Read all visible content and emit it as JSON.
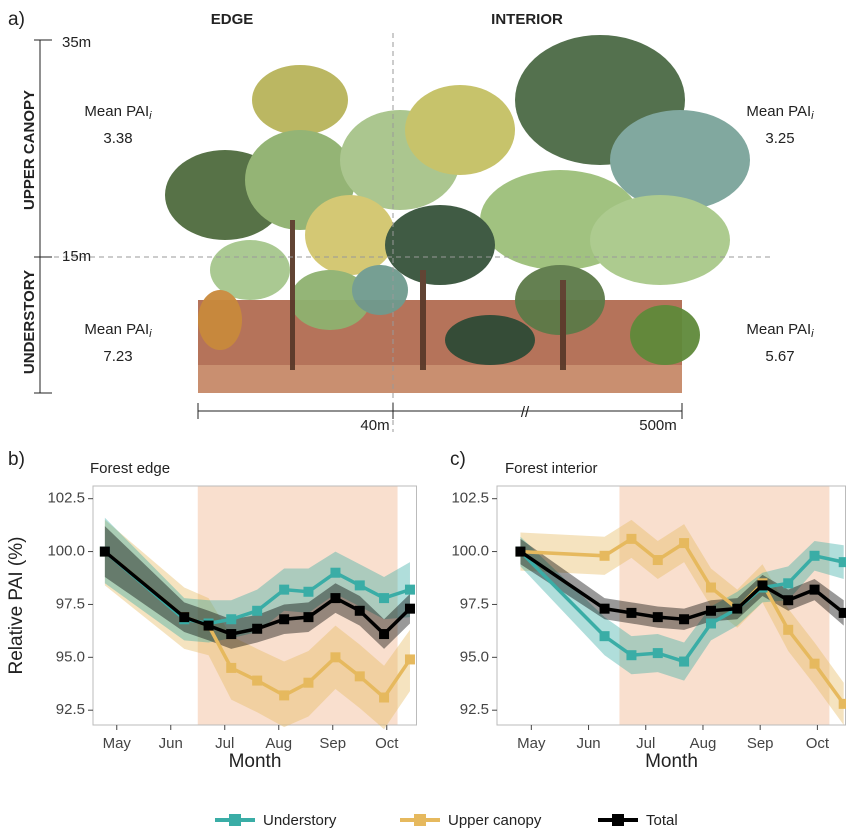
{
  "illustration": {
    "panel_label": "a)",
    "edge": "EDGE",
    "interior": "INTERIOR",
    "height_top": "35m",
    "height_mid": "15m",
    "upper_canopy": "UPPER CANOPY",
    "understory": "UNDERSTORY",
    "distance_edge": "40m",
    "distance_break": "//",
    "distance_interior": "500m",
    "annotations": [
      {
        "label": "Mean PAI",
        "sub": "i",
        "value": "3.38"
      },
      {
        "label": "Mean PAI",
        "sub": "i",
        "value": "7.23"
      },
      {
        "label": "Mean PAI",
        "sub": "i",
        "value": "3.25"
      },
      {
        "label": "Mean PAI",
        "sub": "i",
        "value": "5.67"
      }
    ]
  },
  "chart_data": [
    {
      "type": "line",
      "panel_label": "b)",
      "title": "Forest edge",
      "x_label": "Month",
      "y_label": "Relative PAI (%)",
      "x": [
        4.78,
        6.25,
        6.7,
        7.12,
        7.6,
        8.1,
        8.55,
        9.05,
        9.5,
        9.95,
        10.43
      ],
      "xlim": [
        4.56,
        10.56
      ],
      "ylim": [
        91.8,
        103.1
      ],
      "xticks": [
        {
          "value": 5,
          "label": "May"
        },
        {
          "value": 6,
          "label": "Jun"
        },
        {
          "value": 7,
          "label": "Jul"
        },
        {
          "value": 8,
          "label": "Aug"
        },
        {
          "value": 9,
          "label": "Sep"
        },
        {
          "value": 10,
          "label": "Oct"
        }
      ],
      "yticks": [
        92.5,
        {
          "value": 95,
          "label": "95.0"
        },
        97.5,
        {
          "value": 100,
          "label": "100.0"
        },
        102.5
      ],
      "highlight": [
        6.5,
        10.2
      ],
      "highlight_color": "#f8d9c6",
      "series": [
        {
          "name": "Understory",
          "color": "#3aada6",
          "values": [
            100.0,
            96.8,
            96.6,
            96.8,
            97.2,
            98.2,
            98.1,
            99.0,
            98.4,
            97.8,
            98.2
          ],
          "upper": [
            101.6,
            97.8,
            97.7,
            97.7,
            98.2,
            99.2,
            99.2,
            100.0,
            99.4,
            98.8,
            99.5
          ],
          "lower": [
            98.5,
            95.8,
            95.7,
            95.9,
            96.2,
            97.2,
            97.1,
            98.0,
            97.4,
            96.8,
            96.9
          ]
        },
        {
          "name": "Upper canopy",
          "color": "#e6b95e",
          "values": [
            100.0,
            96.9,
            96.5,
            94.5,
            93.9,
            93.2,
            93.8,
            95.0,
            94.1,
            93.1,
            94.9
          ],
          "upper": [
            101.5,
            98.3,
            97.8,
            96.0,
            95.4,
            94.8,
            95.3,
            96.5,
            95.6,
            94.6,
            96.3
          ],
          "lower": [
            98.4,
            95.4,
            95.1,
            93.0,
            92.4,
            91.7,
            92.2,
            93.5,
            92.6,
            91.6,
            93.4
          ]
        },
        {
          "name": "Total",
          "color": "#000000",
          "values": [
            100.0,
            96.9,
            96.5,
            96.1,
            96.35,
            96.8,
            96.9,
            97.8,
            97.2,
            96.1,
            97.3
          ],
          "upper": [
            101.2,
            97.6,
            97.2,
            96.8,
            97.0,
            97.5,
            97.6,
            98.5,
            97.9,
            96.8,
            98.0
          ],
          "lower": [
            98.8,
            96.2,
            95.8,
            95.4,
            95.7,
            96.1,
            96.2,
            97.1,
            96.5,
            95.4,
            96.6
          ]
        }
      ]
    },
    {
      "type": "line",
      "panel_label": "c)",
      "title": "Forest interior",
      "x_label": "Month",
      "x": [
        4.81,
        6.28,
        6.75,
        7.21,
        7.67,
        8.14,
        8.6,
        9.04,
        9.49,
        9.95,
        10.46
      ],
      "xlim": [
        4.4,
        10.5
      ],
      "ylim": [
        91.8,
        103.1
      ],
      "xticks": [
        {
          "value": 5,
          "label": "May"
        },
        {
          "value": 6,
          "label": "Jun"
        },
        {
          "value": 7,
          "label": "Jul"
        },
        {
          "value": 8,
          "label": "Aug"
        },
        {
          "value": 9,
          "label": "Sep"
        },
        {
          "value": 10,
          "label": "Oct"
        }
      ],
      "yticks": [
        92.5,
        {
          "value": 95,
          "label": "95.0"
        },
        97.5,
        {
          "value": 100,
          "label": "100.0"
        },
        102.5
      ],
      "highlight": [
        6.54,
        10.21
      ],
      "highlight_color": "#f8d9c6",
      "series": [
        {
          "color": "#3aada6",
          "values": [
            100.0,
            96.0,
            95.1,
            95.2,
            94.8,
            96.6,
            97.3,
            98.3,
            98.5,
            99.8,
            99.5
          ],
          "upper": [
            100.7,
            96.9,
            96.0,
            96.1,
            95.7,
            97.4,
            98.1,
            99.0,
            99.3,
            100.5,
            100.3
          ],
          "lower": [
            99.3,
            95.1,
            94.2,
            94.3,
            93.9,
            95.8,
            96.5,
            97.6,
            97.7,
            99.1,
            98.7
          ]
        },
        {
          "color": "#e6b95e",
          "values": [
            100.0,
            99.8,
            100.6,
            99.6,
            100.4,
            98.3,
            97.3,
            98.5,
            96.3,
            94.7,
            92.8
          ],
          "upper": [
            100.9,
            100.7,
            101.5,
            100.5,
            101.3,
            99.2,
            98.2,
            99.4,
            97.3,
            95.7,
            93.8
          ],
          "lower": [
            99.1,
            98.9,
            99.7,
            98.7,
            99.5,
            97.4,
            96.4,
            97.6,
            95.3,
            93.7,
            91.8
          ]
        },
        {
          "color": "#000000",
          "values": [
            100.0,
            97.3,
            97.1,
            96.9,
            96.8,
            97.2,
            97.3,
            98.4,
            97.7,
            98.2,
            97.1
          ],
          "upper": [
            100.6,
            97.8,
            97.6,
            97.4,
            97.3,
            97.7,
            97.8,
            98.9,
            98.2,
            98.7,
            97.7
          ],
          "lower": [
            99.4,
            96.8,
            96.6,
            96.4,
            96.3,
            96.7,
            96.8,
            97.9,
            97.2,
            97.7,
            96.5
          ]
        }
      ]
    }
  ]
}
